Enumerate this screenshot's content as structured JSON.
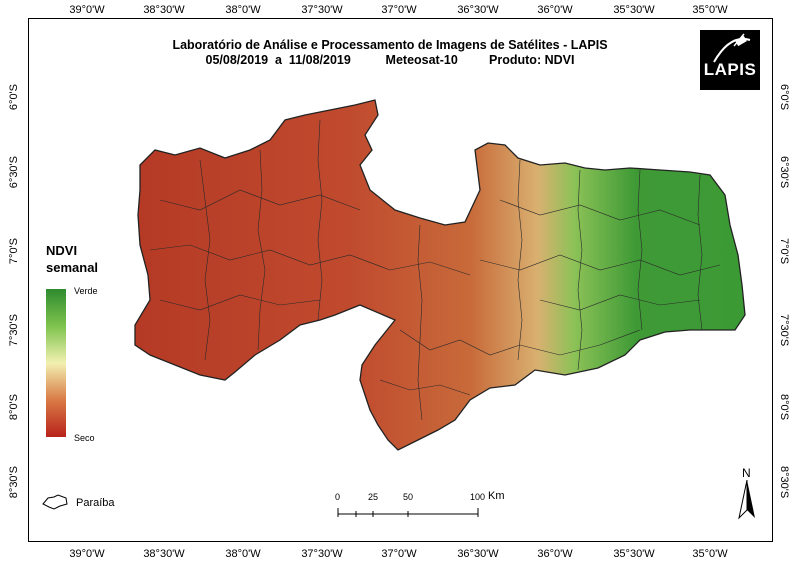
{
  "map": {
    "title_line1": "Laboratório de Análise e Processamento de Imagens de Satélites - LAPIS",
    "title_line2": "05/08/2019  a  11/08/2019          Meteosat-10         Produto: NDVI",
    "logo_text": "LAPIS",
    "legend": {
      "title_line1": "NDVI",
      "title_line2": "semanal",
      "high_label": "Verde",
      "low_label": "Seco",
      "colors": [
        "#2e8b2e",
        "#7ec34e",
        "#f2f0b0",
        "#d97a45",
        "#b8221a"
      ]
    },
    "reference_label": "Paraíba",
    "scale_bar": {
      "labels": [
        "0",
        "25",
        "50",
        "100"
      ],
      "unit": "Km"
    },
    "north_label": "N",
    "longitude_ticks": [
      "39°0'W",
      "38°30'W",
      "38°0'W",
      "37°30'W",
      "37°0'W",
      "36°30'W",
      "36°0'W",
      "35°30'W",
      "35°0'W"
    ],
    "latitude_ticks": [
      "6°0'S",
      "6°30'S",
      "7°0'S",
      "7°30'S",
      "8°0'S",
      "8°30'S"
    ]
  }
}
